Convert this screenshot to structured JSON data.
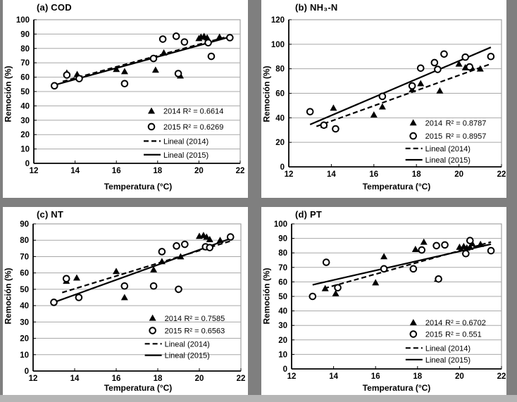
{
  "palette": {
    "background": "#ffffff",
    "gutter": "#7f7f7f",
    "bottom_edge": "#b5b5b5",
    "ink": "#000000",
    "gridline": "#a8a8a8",
    "frame": "#909090"
  },
  "chart_data": [
    {
      "type": "scatter",
      "title": "(a) COD",
      "xlabel": "Temperatura (°C)",
      "ylabel": "Remoción (%)",
      "xlim": [
        12,
        22
      ],
      "ylim": [
        0,
        100
      ],
      "xticks": [
        12,
        14,
        16,
        18,
        20,
        22
      ],
      "yticks": [
        0,
        10,
        20,
        30,
        40,
        50,
        60,
        70,
        80,
        90,
        100
      ],
      "grid": "horizontal",
      "series": [
        {
          "name": "2014",
          "marker": "triangle",
          "points": [
            [
              13.6,
              63
            ],
            [
              14.1,
              62
            ],
            [
              16.0,
              65.5
            ],
            [
              16.4,
              64
            ],
            [
              17.9,
              65
            ],
            [
              18.3,
              77
            ],
            [
              19.1,
              61
            ],
            [
              20.0,
              87
            ],
            [
              20.1,
              88
            ],
            [
              20.25,
              88.5
            ],
            [
              20.4,
              87.5
            ],
            [
              21.0,
              88
            ]
          ]
        },
        {
          "name": "2015",
          "marker": "circle",
          "points": [
            [
              13.0,
              54
            ],
            [
              13.6,
              61.5
            ],
            [
              14.2,
              59
            ],
            [
              16.4,
              55.5
            ],
            [
              17.8,
              73
            ],
            [
              18.25,
              86.5
            ],
            [
              18.9,
              88.5
            ],
            [
              19.0,
              62.5
            ],
            [
              19.3,
              84.5
            ],
            [
              20.45,
              84
            ],
            [
              20.6,
              74.5
            ],
            [
              21.5,
              87.5
            ]
          ]
        }
      ],
      "trendlines": [
        {
          "name": "Lineal (2014)",
          "style": "dashed",
          "from": [
            13.4,
            57
          ],
          "to": [
            21.45,
            88.5
          ]
        },
        {
          "name": "Lineal (2015)",
          "style": "solid",
          "from": [
            13.0,
            54.5
          ],
          "to": [
            21.5,
            88
          ]
        }
      ],
      "legend": [
        {
          "marker": "triangle",
          "label": "2014",
          "r2": "R² = 0.6614"
        },
        {
          "marker": "circle",
          "label": "2015",
          "r2": "R² = 0.6269"
        },
        {
          "marker": "dashed-line",
          "label": "Lineal (2014)",
          "r2": ""
        },
        {
          "marker": "solid-line",
          "label": "Lineal (2015)",
          "r2": ""
        }
      ]
    },
    {
      "type": "scatter",
      "title": "(b) NH₃-N",
      "xlabel": "Temperatura (°C)",
      "ylabel": "Remoción (%)",
      "xlim": [
        12,
        22
      ],
      "ylim": [
        0,
        120
      ],
      "xticks": [
        12,
        14,
        16,
        18,
        20,
        22
      ],
      "yticks": [
        0,
        20,
        40,
        60,
        80,
        100,
        120
      ],
      "grid": "horizontal",
      "series": [
        {
          "name": "2014",
          "marker": "triangle",
          "points": [
            [
              13.65,
              34
            ],
            [
              14.1,
              48
            ],
            [
              16.0,
              42.5
            ],
            [
              16.4,
              49
            ],
            [
              17.8,
              63
            ],
            [
              18.2,
              68
            ],
            [
              19.1,
              62
            ],
            [
              20.0,
              84
            ],
            [
              20.3,
              81
            ],
            [
              20.45,
              81.5
            ],
            [
              20.6,
              81
            ],
            [
              21.0,
              80
            ]
          ]
        },
        {
          "name": "2015",
          "marker": "circle",
          "points": [
            [
              13.0,
              45
            ],
            [
              13.65,
              34
            ],
            [
              14.2,
              31
            ],
            [
              16.4,
              57.5
            ],
            [
              17.8,
              66
            ],
            [
              18.2,
              80.5
            ],
            [
              18.85,
              85
            ],
            [
              19.0,
              79.5
            ],
            [
              19.3,
              92
            ],
            [
              20.3,
              89.5
            ],
            [
              20.5,
              81.5
            ],
            [
              21.5,
              90
            ]
          ]
        }
      ],
      "trendlines": [
        {
          "name": "Lineal (2014)",
          "style": "dashed",
          "from": [
            13.3,
            33
          ],
          "to": [
            21.5,
            84
          ]
        },
        {
          "name": "Lineal (2015)",
          "style": "solid",
          "from": [
            13.0,
            34.5
          ],
          "to": [
            21.5,
            97.5
          ]
        }
      ],
      "legend": [
        {
          "marker": "triangle",
          "label": "2014",
          "r2": "R² = 0.8787"
        },
        {
          "marker": "circle",
          "label": "2015",
          "r2": "R² = 0.8957"
        },
        {
          "marker": "dashed-line",
          "label": "Lineal (2014)",
          "r2": ""
        },
        {
          "marker": "solid-line",
          "label": "Lineal (2015)",
          "r2": ""
        }
      ]
    },
    {
      "type": "scatter",
      "title": "(c) NT",
      "xlabel": "Temperatura (°C)",
      "ylabel": "Remoción (%)",
      "xlim": [
        12,
        22
      ],
      "ylim": [
        0,
        90
      ],
      "xticks": [
        12,
        14,
        16,
        18,
        20,
        22
      ],
      "yticks": [
        0,
        10,
        20,
        30,
        40,
        50,
        60,
        70,
        80,
        90
      ],
      "grid": "horizontal",
      "series": [
        {
          "name": "2014",
          "marker": "triangle",
          "points": [
            [
              13.6,
              55
            ],
            [
              14.1,
              57
            ],
            [
              16.0,
              61
            ],
            [
              16.4,
              45
            ],
            [
              17.8,
              62
            ],
            [
              18.2,
              67
            ],
            [
              19.1,
              70
            ],
            [
              20.0,
              82.5
            ],
            [
              20.2,
              83
            ],
            [
              20.35,
              82
            ],
            [
              20.5,
              80.5
            ],
            [
              21.0,
              80
            ]
          ]
        },
        {
          "name": "2015",
          "marker": "circle",
          "points": [
            [
              13.0,
              42
            ],
            [
              13.6,
              56.5
            ],
            [
              14.2,
              45
            ],
            [
              16.4,
              52
            ],
            [
              17.8,
              52
            ],
            [
              18.2,
              73
            ],
            [
              18.9,
              76.5
            ],
            [
              19.0,
              50
            ],
            [
              19.3,
              77.5
            ],
            [
              20.3,
              76
            ],
            [
              20.5,
              75.5
            ],
            [
              21.5,
              82
            ]
          ]
        }
      ],
      "trendlines": [
        {
          "name": "Lineal (2014)",
          "style": "dashed",
          "from": [
            13.4,
            48
          ],
          "to": [
            21.5,
            79.5
          ]
        },
        {
          "name": "Lineal (2015)",
          "style": "solid",
          "from": [
            13.0,
            42
          ],
          "to": [
            21.5,
            81
          ]
        }
      ],
      "legend": [
        {
          "marker": "triangle",
          "label": "2014",
          "r2": "R² = 0.7585"
        },
        {
          "marker": "circle",
          "label": "2015",
          "r2": "R² = 0.6563"
        },
        {
          "marker": "dashed-line",
          "label": "Lineal (2014)",
          "r2": ""
        },
        {
          "marker": "solid-line",
          "label": "Lineal (2015)",
          "r2": ""
        }
      ]
    },
    {
      "type": "scatter",
      "title": "(d) PT",
      "xlabel": "Temperatura (°C)",
      "ylabel": "Remoción (%)",
      "xlim": [
        12,
        22
      ],
      "ylim": [
        0,
        100
      ],
      "xticks": [
        12,
        14,
        16,
        18,
        20,
        22
      ],
      "yticks": [
        0,
        10,
        20,
        30,
        40,
        50,
        60,
        70,
        80,
        90,
        100
      ],
      "grid": "horizontal",
      "series": [
        {
          "name": "2014",
          "marker": "triangle",
          "points": [
            [
              13.6,
              55.5
            ],
            [
              14.1,
              52
            ],
            [
              16.0,
              59.5
            ],
            [
              16.4,
              77.5
            ],
            [
              17.9,
              82.5
            ],
            [
              18.3,
              87.5
            ],
            [
              18.95,
              62
            ],
            [
              20.0,
              84
            ],
            [
              20.2,
              84.5
            ],
            [
              20.35,
              83.5
            ],
            [
              20.5,
              84
            ],
            [
              20.6,
              86.5
            ],
            [
              21.0,
              86
            ]
          ]
        },
        {
          "name": "2015",
          "marker": "circle",
          "points": [
            [
              13.0,
              50
            ],
            [
              13.65,
              73.5
            ],
            [
              14.2,
              56
            ],
            [
              16.4,
              69
            ],
            [
              17.8,
              69
            ],
            [
              18.2,
              82
            ],
            [
              18.9,
              85
            ],
            [
              19.0,
              62
            ],
            [
              19.3,
              85.5
            ],
            [
              20.3,
              79.5
            ],
            [
              20.5,
              88.5
            ],
            [
              21.5,
              81.5
            ]
          ]
        }
      ],
      "trendlines": [
        {
          "name": "Lineal (2014)",
          "style": "dashed",
          "from": [
            13.55,
            55.5
          ],
          "to": [
            21.5,
            87.5
          ]
        },
        {
          "name": "Lineal (2015)",
          "style": "solid",
          "from": [
            13.0,
            58
          ],
          "to": [
            21.5,
            86
          ]
        }
      ],
      "legend": [
        {
          "marker": "triangle",
          "label": "2014",
          "r2": "R² = 0.6702"
        },
        {
          "marker": "circle",
          "label": "2015",
          "r2": "R² = 0.551"
        },
        {
          "marker": "dashed-line",
          "label": "Lineal (2014)",
          "r2": ""
        },
        {
          "marker": "solid-line",
          "label": "Lineal (2015)",
          "r2": ""
        }
      ]
    }
  ]
}
